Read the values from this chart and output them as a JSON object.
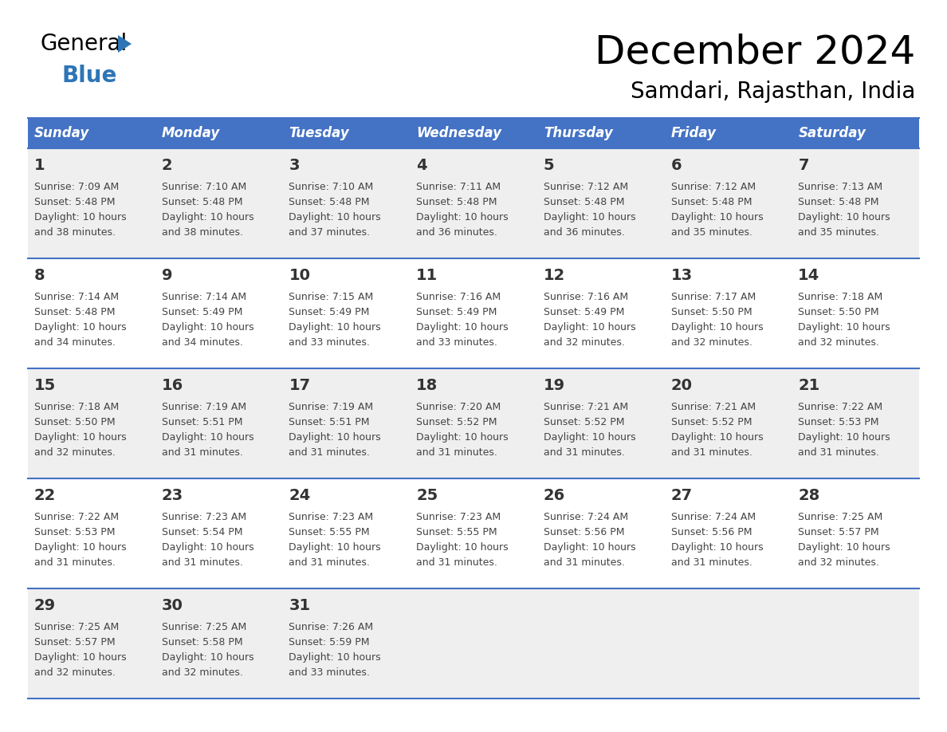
{
  "title": "December 2024",
  "subtitle": "Samdari, Rajasthan, India",
  "header_bg": "#4472C4",
  "header_text": "#FFFFFF",
  "row_bg_odd": "#EFEFEF",
  "row_bg_even": "#FFFFFF",
  "border_color": "#4472C4",
  "day_headers": [
    "Sunday",
    "Monday",
    "Tuesday",
    "Wednesday",
    "Thursday",
    "Friday",
    "Saturday"
  ],
  "calendar_data": [
    [
      {
        "day": 1,
        "sunrise": "7:09 AM",
        "sunset": "5:48 PM",
        "daylight": "10 hours and 38 minutes"
      },
      {
        "day": 2,
        "sunrise": "7:10 AM",
        "sunset": "5:48 PM",
        "daylight": "10 hours and 38 minutes"
      },
      {
        "day": 3,
        "sunrise": "7:10 AM",
        "sunset": "5:48 PM",
        "daylight": "10 hours and 37 minutes"
      },
      {
        "day": 4,
        "sunrise": "7:11 AM",
        "sunset": "5:48 PM",
        "daylight": "10 hours and 36 minutes"
      },
      {
        "day": 5,
        "sunrise": "7:12 AM",
        "sunset": "5:48 PM",
        "daylight": "10 hours and 36 minutes"
      },
      {
        "day": 6,
        "sunrise": "7:12 AM",
        "sunset": "5:48 PM",
        "daylight": "10 hours and 35 minutes"
      },
      {
        "day": 7,
        "sunrise": "7:13 AM",
        "sunset": "5:48 PM",
        "daylight": "10 hours and 35 minutes"
      }
    ],
    [
      {
        "day": 8,
        "sunrise": "7:14 AM",
        "sunset": "5:48 PM",
        "daylight": "10 hours and 34 minutes"
      },
      {
        "day": 9,
        "sunrise": "7:14 AM",
        "sunset": "5:49 PM",
        "daylight": "10 hours and 34 minutes"
      },
      {
        "day": 10,
        "sunrise": "7:15 AM",
        "sunset": "5:49 PM",
        "daylight": "10 hours and 33 minutes"
      },
      {
        "day": 11,
        "sunrise": "7:16 AM",
        "sunset": "5:49 PM",
        "daylight": "10 hours and 33 minutes"
      },
      {
        "day": 12,
        "sunrise": "7:16 AM",
        "sunset": "5:49 PM",
        "daylight": "10 hours and 32 minutes"
      },
      {
        "day": 13,
        "sunrise": "7:17 AM",
        "sunset": "5:50 PM",
        "daylight": "10 hours and 32 minutes"
      },
      {
        "day": 14,
        "sunrise": "7:18 AM",
        "sunset": "5:50 PM",
        "daylight": "10 hours and 32 minutes"
      }
    ],
    [
      {
        "day": 15,
        "sunrise": "7:18 AM",
        "sunset": "5:50 PM",
        "daylight": "10 hours and 32 minutes"
      },
      {
        "day": 16,
        "sunrise": "7:19 AM",
        "sunset": "5:51 PM",
        "daylight": "10 hours and 31 minutes"
      },
      {
        "day": 17,
        "sunrise": "7:19 AM",
        "sunset": "5:51 PM",
        "daylight": "10 hours and 31 minutes"
      },
      {
        "day": 18,
        "sunrise": "7:20 AM",
        "sunset": "5:52 PM",
        "daylight": "10 hours and 31 minutes"
      },
      {
        "day": 19,
        "sunrise": "7:21 AM",
        "sunset": "5:52 PM",
        "daylight": "10 hours and 31 minutes"
      },
      {
        "day": 20,
        "sunrise": "7:21 AM",
        "sunset": "5:52 PM",
        "daylight": "10 hours and 31 minutes"
      },
      {
        "day": 21,
        "sunrise": "7:22 AM",
        "sunset": "5:53 PM",
        "daylight": "10 hours and 31 minutes"
      }
    ],
    [
      {
        "day": 22,
        "sunrise": "7:22 AM",
        "sunset": "5:53 PM",
        "daylight": "10 hours and 31 minutes"
      },
      {
        "day": 23,
        "sunrise": "7:23 AM",
        "sunset": "5:54 PM",
        "daylight": "10 hours and 31 minutes"
      },
      {
        "day": 24,
        "sunrise": "7:23 AM",
        "sunset": "5:55 PM",
        "daylight": "10 hours and 31 minutes"
      },
      {
        "day": 25,
        "sunrise": "7:23 AM",
        "sunset": "5:55 PM",
        "daylight": "10 hours and 31 minutes"
      },
      {
        "day": 26,
        "sunrise": "7:24 AM",
        "sunset": "5:56 PM",
        "daylight": "10 hours and 31 minutes"
      },
      {
        "day": 27,
        "sunrise": "7:24 AM",
        "sunset": "5:56 PM",
        "daylight": "10 hours and 31 minutes"
      },
      {
        "day": 28,
        "sunrise": "7:25 AM",
        "sunset": "5:57 PM",
        "daylight": "10 hours and 32 minutes"
      }
    ],
    [
      {
        "day": 29,
        "sunrise": "7:25 AM",
        "sunset": "5:57 PM",
        "daylight": "10 hours and 32 minutes"
      },
      {
        "day": 30,
        "sunrise": "7:25 AM",
        "sunset": "5:58 PM",
        "daylight": "10 hours and 32 minutes"
      },
      {
        "day": 31,
        "sunrise": "7:26 AM",
        "sunset": "5:59 PM",
        "daylight": "10 hours and 33 minutes"
      },
      null,
      null,
      null,
      null
    ]
  ],
  "logo_blue": "#2E75B6",
  "logo_triangle_color": "#2E75B6",
  "cell_text_color": "#444444",
  "day_number_color": "#333333",
  "title_fontsize": 36,
  "subtitle_fontsize": 20,
  "header_fontsize": 12,
  "day_num_fontsize": 14,
  "cell_fontsize": 9
}
